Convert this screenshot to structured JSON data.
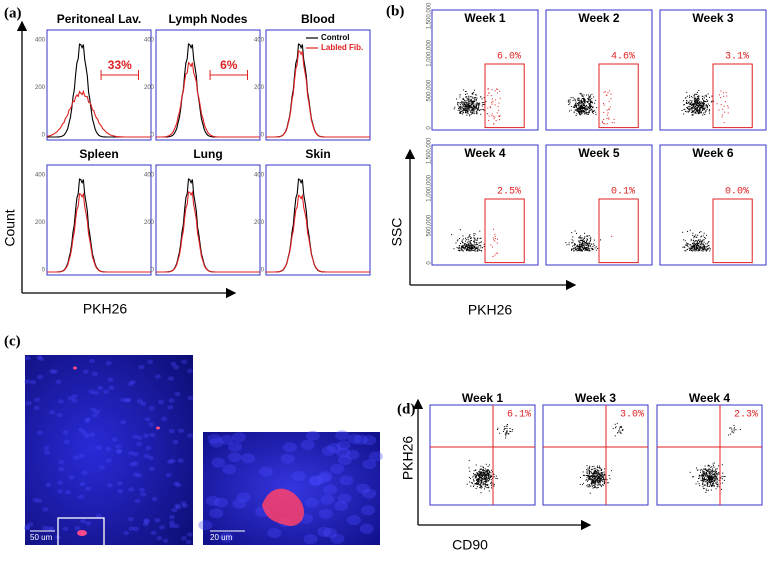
{
  "panel_a": {
    "label": "(a)",
    "y_label": "Count",
    "x_label": "PKH26",
    "legend": [
      "Control",
      "Labled Fib."
    ],
    "y_ticks": [
      "0",
      "200",
      "400"
    ],
    "plots": [
      {
        "title": "Peritoneal Lav.",
        "gate": "33%"
      },
      {
        "title": "Lymph Nodes",
        "gate": "6%"
      },
      {
        "title": "Blood"
      },
      {
        "title": "Spleen"
      },
      {
        "title": "Lung"
      },
      {
        "title": "Skin"
      }
    ]
  },
  "panel_b": {
    "label": "(b)",
    "y_label": "SSC",
    "x_label": "PKH26",
    "y_ticks": [
      "0",
      "500,000",
      "1,000,000",
      "1,500,000"
    ],
    "plots": [
      {
        "title": "Week 1",
        "gate": "6.0%"
      },
      {
        "title": "Week 2",
        "gate": "4.6%"
      },
      {
        "title": "Week 3",
        "gate": "3.1%"
      },
      {
        "title": "Week 4",
        "gate": "2.5%"
      },
      {
        "title": "Week 5",
        "gate": "0.1%"
      },
      {
        "title": "Week 6",
        "gate": "0.0%"
      }
    ]
  },
  "panel_c": {
    "label": "(c)",
    "scale_bars": [
      "50 um",
      "20 um"
    ]
  },
  "panel_d": {
    "label": "(d)",
    "y_label": "PKH26",
    "x_label": "CD90",
    "plots": [
      {
        "title": "Week 1",
        "gate": "6.1%"
      },
      {
        "title": "Week 3",
        "gate": "3.0%"
      },
      {
        "title": "Week 4",
        "gate": "2.3%"
      }
    ]
  }
}
